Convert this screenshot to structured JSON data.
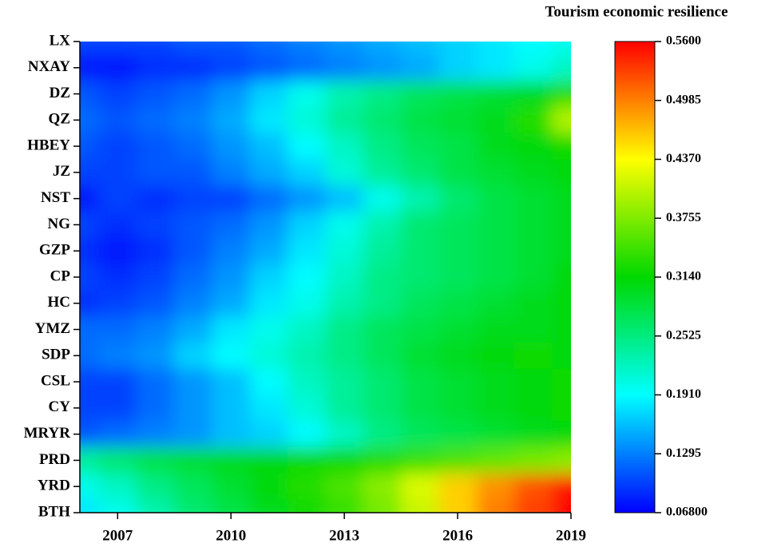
{
  "chart_data": {
    "type": "heatmap",
    "colorbar_title": "Tourism economic resilience",
    "x": [
      2006,
      2007,
      2008,
      2009,
      2010,
      2011,
      2012,
      2013,
      2014,
      2015,
      2016,
      2017,
      2018,
      2019
    ],
    "xlim": [
      2006,
      2019
    ],
    "xticks": [
      2007,
      2010,
      2013,
      2016,
      2019
    ],
    "series": [
      {
        "name": "LX",
        "values": [
          0.1,
          0.1,
          0.1,
          0.11,
          0.11,
          0.12,
          0.13,
          0.14,
          0.15,
          0.16,
          0.17,
          0.18,
          0.19,
          0.2
        ]
      },
      {
        "name": "NXAY",
        "values": [
          0.08,
          0.08,
          0.09,
          0.09,
          0.1,
          0.11,
          0.12,
          0.13,
          0.14,
          0.15,
          0.17,
          0.18,
          0.2,
          0.22
        ]
      },
      {
        "name": "DZ",
        "values": [
          0.11,
          0.1,
          0.11,
          0.12,
          0.14,
          0.17,
          0.2,
          0.23,
          0.25,
          0.27,
          0.28,
          0.29,
          0.3,
          0.33
        ]
      },
      {
        "name": "QZ",
        "values": [
          0.12,
          0.11,
          0.12,
          0.13,
          0.15,
          0.18,
          0.21,
          0.24,
          0.26,
          0.28,
          0.29,
          0.3,
          0.33,
          0.4
        ]
      },
      {
        "name": "HBEY",
        "values": [
          0.11,
          0.1,
          0.11,
          0.12,
          0.14,
          0.16,
          0.19,
          0.22,
          0.25,
          0.27,
          0.28,
          0.3,
          0.31,
          0.32
        ]
      },
      {
        "name": "JZ",
        "values": [
          0.1,
          0.1,
          0.11,
          0.11,
          0.13,
          0.15,
          0.17,
          0.21,
          0.24,
          0.26,
          0.28,
          0.29,
          0.3,
          0.31
        ]
      },
      {
        "name": "NST",
        "values": [
          0.08,
          0.1,
          0.09,
          0.1,
          0.1,
          0.12,
          0.14,
          0.16,
          0.2,
          0.23,
          0.26,
          0.28,
          0.29,
          0.3
        ]
      },
      {
        "name": "NG",
        "values": [
          0.1,
          0.09,
          0.1,
          0.11,
          0.12,
          0.14,
          0.17,
          0.2,
          0.23,
          0.26,
          0.27,
          0.28,
          0.29,
          0.3
        ]
      },
      {
        "name": "GZP",
        "values": [
          0.09,
          0.08,
          0.09,
          0.11,
          0.13,
          0.15,
          0.18,
          0.21,
          0.24,
          0.26,
          0.27,
          0.28,
          0.29,
          0.3
        ]
      },
      {
        "name": "CP",
        "values": [
          0.1,
          0.09,
          0.1,
          0.12,
          0.14,
          0.17,
          0.19,
          0.22,
          0.25,
          0.26,
          0.27,
          0.28,
          0.29,
          0.31
        ]
      },
      {
        "name": "HC",
        "values": [
          0.09,
          0.1,
          0.11,
          0.13,
          0.15,
          0.18,
          0.2,
          0.23,
          0.25,
          0.27,
          0.28,
          0.29,
          0.3,
          0.31
        ]
      },
      {
        "name": "YMZ",
        "values": [
          0.12,
          0.12,
          0.13,
          0.15,
          0.18,
          0.2,
          0.22,
          0.25,
          0.27,
          0.28,
          0.29,
          0.3,
          0.3,
          0.31
        ]
      },
      {
        "name": "SDP",
        "values": [
          0.12,
          0.13,
          0.14,
          0.17,
          0.19,
          0.21,
          0.23,
          0.25,
          0.27,
          0.29,
          0.3,
          0.31,
          0.32,
          0.31
        ]
      },
      {
        "name": "CSL",
        "values": [
          0.1,
          0.1,
          0.12,
          0.14,
          0.16,
          0.19,
          0.22,
          0.24,
          0.26,
          0.28,
          0.29,
          0.3,
          0.31,
          0.32
        ]
      },
      {
        "name": "CY",
        "values": [
          0.1,
          0.1,
          0.12,
          0.14,
          0.16,
          0.18,
          0.21,
          0.24,
          0.26,
          0.28,
          0.29,
          0.3,
          0.31,
          0.32
        ]
      },
      {
        "name": "MRYR",
        "values": [
          0.11,
          0.12,
          0.13,
          0.14,
          0.16,
          0.17,
          0.19,
          0.22,
          0.25,
          0.27,
          0.28,
          0.29,
          0.3,
          0.31
        ]
      },
      {
        "name": "PRD",
        "values": [
          0.24,
          0.26,
          0.28,
          0.29,
          0.3,
          0.31,
          0.32,
          0.32,
          0.33,
          0.34,
          0.35,
          0.36,
          0.37,
          0.38
        ]
      },
      {
        "name": "YRD",
        "values": [
          0.2,
          0.22,
          0.25,
          0.27,
          0.29,
          0.31,
          0.33,
          0.35,
          0.38,
          0.42,
          0.46,
          0.49,
          0.52,
          0.55
        ]
      },
      {
        "name": "BTH",
        "values": [
          0.18,
          0.2,
          0.23,
          0.26,
          0.28,
          0.3,
          0.32,
          0.34,
          0.37,
          0.41,
          0.46,
          0.5,
          0.53,
          0.56
        ]
      }
    ],
    "clim": [
      0.068,
      0.56
    ],
    "cticks": [
      {
        "value": 0.068,
        "label": "0.06800"
      },
      0.1295,
      {
        "value": 0.191,
        "label": "0.1910"
      },
      0.2525,
      {
        "value": 0.314,
        "label": "0.3140"
      },
      0.3755,
      {
        "value": 0.437,
        "label": "0.4370"
      },
      0.4985,
      {
        "value": 0.56,
        "label": "0.5600"
      }
    ],
    "colormap": [
      "#0000ff",
      "#00ffff",
      "#00d800",
      "#ffff00",
      "#ff0000"
    ]
  }
}
